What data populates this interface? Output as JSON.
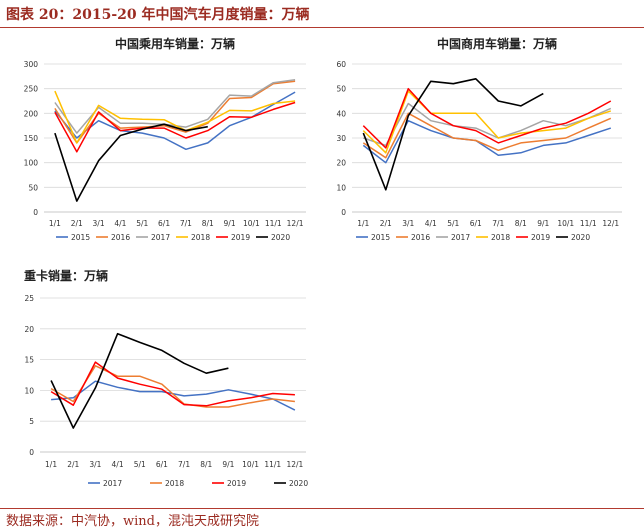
{
  "header": {
    "figure_title": "图表 20：2015-20 年中国汽车月度销量：万辆"
  },
  "footer": {
    "source": "数据来源：中汽协，wind，混沌天成研究院"
  },
  "chart_data": [
    {
      "type": "line",
      "title": "中国乘用车销量：万辆",
      "categories": [
        "1/1",
        "2/1",
        "3/1",
        "4/1",
        "5/1",
        "6/1",
        "7/1",
        "8/1",
        "9/1",
        "10/1",
        "11/1",
        "12/1"
      ],
      "ylim": [
        0,
        300
      ],
      "yticks": [
        0,
        50,
        100,
        150,
        200,
        250,
        300
      ],
      "grid": true,
      "legend_position": "bottom",
      "series": [
        {
          "name": "2015",
          "color": "#4472c4",
          "values": [
            205,
            150,
            185,
            165,
            160,
            150,
            127,
            140,
            175,
            192,
            218,
            243
          ]
        },
        {
          "name": "2016",
          "color": "#ed7d31",
          "values": [
            210,
            140,
            200,
            170,
            172,
            175,
            162,
            180,
            230,
            232,
            260,
            265
          ]
        },
        {
          "name": "2017",
          "color": "#a5a5a5",
          "values": [
            222,
            160,
            212,
            180,
            180,
            178,
            172,
            188,
            237,
            235,
            262,
            268
          ]
        },
        {
          "name": "2018",
          "color": "#ffc000",
          "values": [
            245,
            140,
            216,
            190,
            188,
            187,
            165,
            182,
            206,
            205,
            220,
            225
          ]
        },
        {
          "name": "2019",
          "color": "#ff0000",
          "values": [
            202,
            122,
            203,
            165,
            170,
            170,
            150,
            165,
            193,
            192,
            208,
            222
          ]
        },
        {
          "name": "2020",
          "color": "#000000",
          "values": [
            160,
            22,
            104,
            155,
            168,
            178,
            165,
            173,
            null,
            null,
            null,
            null
          ]
        }
      ]
    },
    {
      "type": "line",
      "title": "中国商用车销量：万辆",
      "categories": [
        "1/1",
        "2/1",
        "3/1",
        "4/1",
        "5/1",
        "6/1",
        "7/1",
        "8/1",
        "9/1",
        "10/1",
        "11/1",
        "12/1"
      ],
      "ylim": [
        0,
        60
      ],
      "yticks": [
        0,
        10,
        20,
        30,
        40,
        50,
        60
      ],
      "grid": true,
      "legend_position": "bottom",
      "series": [
        {
          "name": "2015",
          "color": "#4472c4",
          "values": [
            27,
            20,
            37,
            33,
            30,
            29,
            23,
            24,
            27,
            28,
            31,
            34
          ]
        },
        {
          "name": "2016",
          "color": "#ed7d31",
          "values": [
            28,
            22,
            40,
            35,
            30,
            29,
            25,
            28,
            29,
            30,
            34,
            38
          ]
        },
        {
          "name": "2017",
          "color": "#a5a5a5",
          "values": [
            30,
            27,
            44,
            37,
            35,
            34,
            30,
            33,
            37,
            35,
            38,
            42
          ]
        },
        {
          "name": "2018",
          "color": "#ffc000",
          "values": [
            33,
            24,
            49,
            40,
            40,
            40,
            30,
            32,
            33,
            34,
            38,
            41
          ]
        },
        {
          "name": "2019",
          "color": "#ff0000",
          "values": [
            35,
            26,
            50,
            40,
            35,
            33,
            28,
            31,
            34,
            36,
            40,
            45
          ]
        },
        {
          "name": "2020",
          "color": "#000000",
          "values": [
            32,
            9,
            39,
            53,
            52,
            54,
            45,
            43,
            48,
            null,
            null,
            null
          ]
        }
      ]
    },
    {
      "type": "line",
      "title": "重卡销量：万辆",
      "categories": [
        "1/1",
        "2/1",
        "3/1",
        "4/1",
        "5/1",
        "6/1",
        "7/1",
        "8/1",
        "9/1",
        "10/1",
        "11/1",
        "12/1"
      ],
      "ylim": [
        0,
        25
      ],
      "yticks": [
        0,
        5,
        10,
        15,
        20,
        25
      ],
      "grid": true,
      "legend_position": "bottom",
      "series": [
        {
          "name": "2017",
          "color": "#4472c4",
          "values": [
            8.5,
            8.8,
            11.5,
            10.5,
            9.8,
            9.8,
            9.1,
            9.4,
            10.1,
            9.4,
            8.6,
            6.8
          ]
        },
        {
          "name": "2018",
          "color": "#ed7d31",
          "values": [
            10.3,
            8.2,
            14.0,
            12.3,
            12.3,
            11.0,
            7.8,
            7.3,
            7.3,
            8.0,
            8.6,
            8.2
          ]
        },
        {
          "name": "2019",
          "color": "#ff0000",
          "values": [
            9.8,
            7.6,
            14.6,
            12.0,
            11.0,
            10.2,
            7.7,
            7.5,
            8.3,
            8.8,
            9.5,
            9.3
          ]
        },
        {
          "name": "2020",
          "color": "#000000",
          "values": [
            11.6,
            3.9,
            10.4,
            19.2,
            17.8,
            16.5,
            14.4,
            12.8,
            13.6,
            null,
            null,
            null
          ]
        }
      ]
    }
  ]
}
